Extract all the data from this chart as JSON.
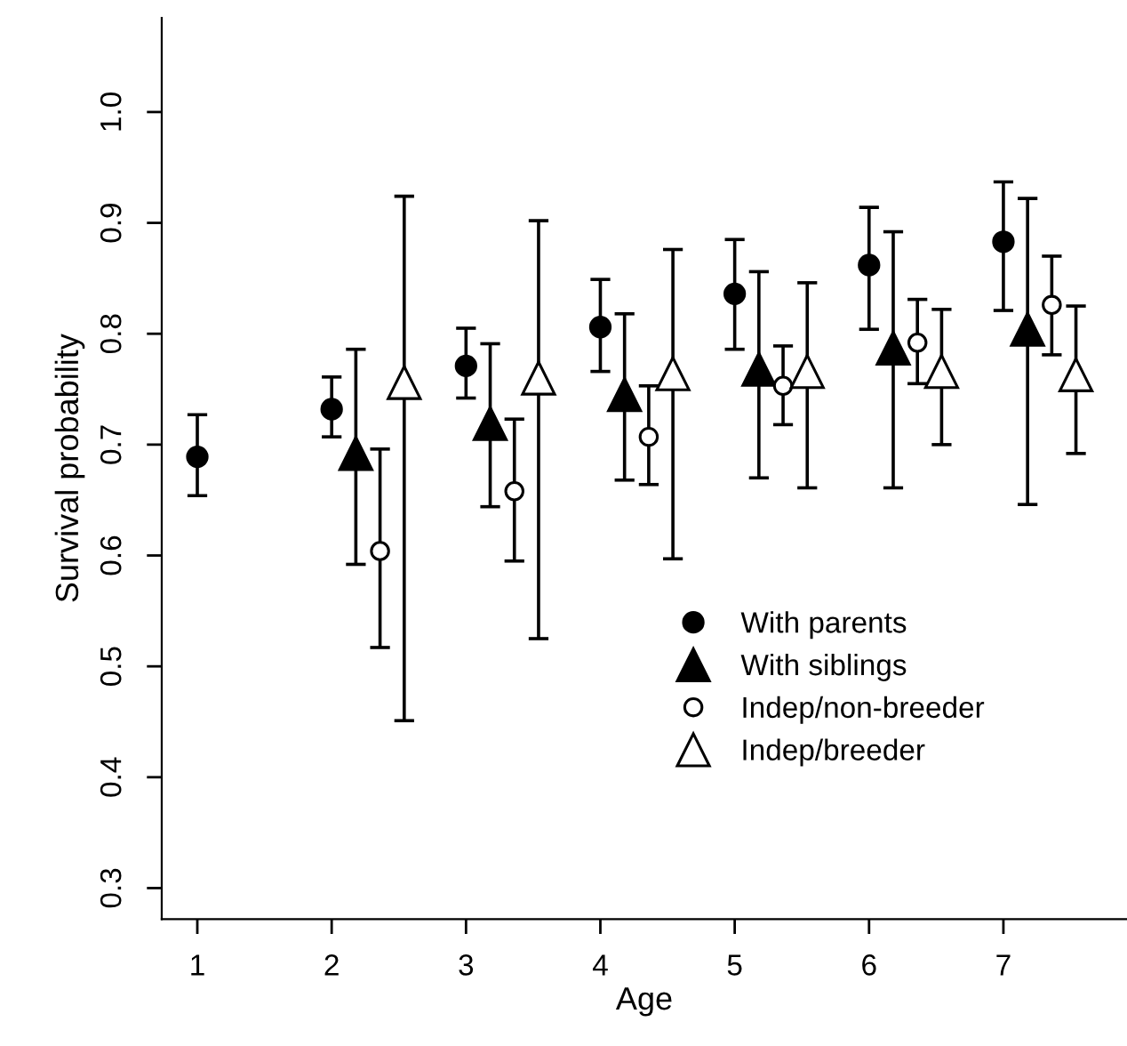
{
  "chart_data": {
    "type": "scatter",
    "xlabel": "Age",
    "ylabel": "Survival probability",
    "xlim": [
      0.735,
      7.92
    ],
    "ylim": [
      0.272,
      1.085
    ],
    "xticks": [
      1,
      2,
      3,
      4,
      5,
      6,
      7
    ],
    "yticks": [
      {
        "value": 0.3,
        "label": "0.3"
      },
      {
        "value": 0.4,
        "label": "0.4"
      },
      {
        "value": 0.5,
        "label": "0.5"
      },
      {
        "value": 0.6,
        "label": "0.6"
      },
      {
        "value": 0.7,
        "label": "0.7"
      },
      {
        "value": 0.8,
        "label": "0.8"
      },
      {
        "value": 0.9,
        "label": "0.9"
      },
      {
        "value": 1.0,
        "label": "1.0"
      }
    ],
    "grid": false,
    "legend": "bottom right",
    "series": [
      {
        "name": "With parents",
        "color": "#000000",
        "marker": "circle",
        "x": [
          1,
          2,
          3,
          4,
          5,
          6,
          7
        ],
        "values": [
          0.689,
          0.732,
          0.771,
          0.806,
          0.836,
          0.862,
          0.883
        ],
        "errors": [
          [
            0.654,
            0.727
          ],
          [
            0.707,
            0.761
          ],
          [
            0.742,
            0.805
          ],
          [
            0.766,
            0.849
          ],
          [
            0.786,
            0.885
          ],
          [
            0.804,
            0.914
          ],
          [
            0.821,
            0.937
          ]
        ]
      },
      {
        "name": "With siblings",
        "color": "#000000",
        "marker": "triangle",
        "x": [
          2.18,
          3.18,
          4.18,
          5.18,
          6.18,
          7.18
        ],
        "values": [
          0.692,
          0.719,
          0.745,
          0.768,
          0.787,
          0.804
        ],
        "errors": [
          [
            0.592,
            0.786
          ],
          [
            0.644,
            0.791
          ],
          [
            0.668,
            0.818
          ],
          [
            0.67,
            0.856
          ],
          [
            0.661,
            0.892
          ],
          [
            0.646,
            0.922
          ]
        ]
      },
      {
        "name": "Indep/non-breeder",
        "color": "#ffffff",
        "marker": "circle",
        "x": [
          2.36,
          3.36,
          4.36,
          5.36,
          6.36,
          7.36
        ],
        "values": [
          0.604,
          0.658,
          0.707,
          0.753,
          0.792,
          0.826
        ],
        "errors": [
          [
            0.517,
            0.696
          ],
          [
            0.595,
            0.723
          ],
          [
            0.664,
            0.753
          ],
          [
            0.718,
            0.789
          ],
          [
            0.755,
            0.831
          ],
          [
            0.781,
            0.87
          ]
        ]
      },
      {
        "name": "Indep/breeder",
        "color": "#ffffff",
        "marker": "triangle",
        "x": [
          2.54,
          3.54,
          4.54,
          5.54,
          6.54,
          7.54
        ],
        "values": [
          0.756,
          0.76,
          0.764,
          0.766,
          0.766,
          0.763
        ],
        "errors": [
          [
            0.451,
            0.924
          ],
          [
            0.525,
            0.902
          ],
          [
            0.597,
            0.876
          ],
          [
            0.661,
            0.846
          ],
          [
            0.7,
            0.822
          ],
          [
            0.692,
            0.825
          ]
        ]
      }
    ]
  }
}
